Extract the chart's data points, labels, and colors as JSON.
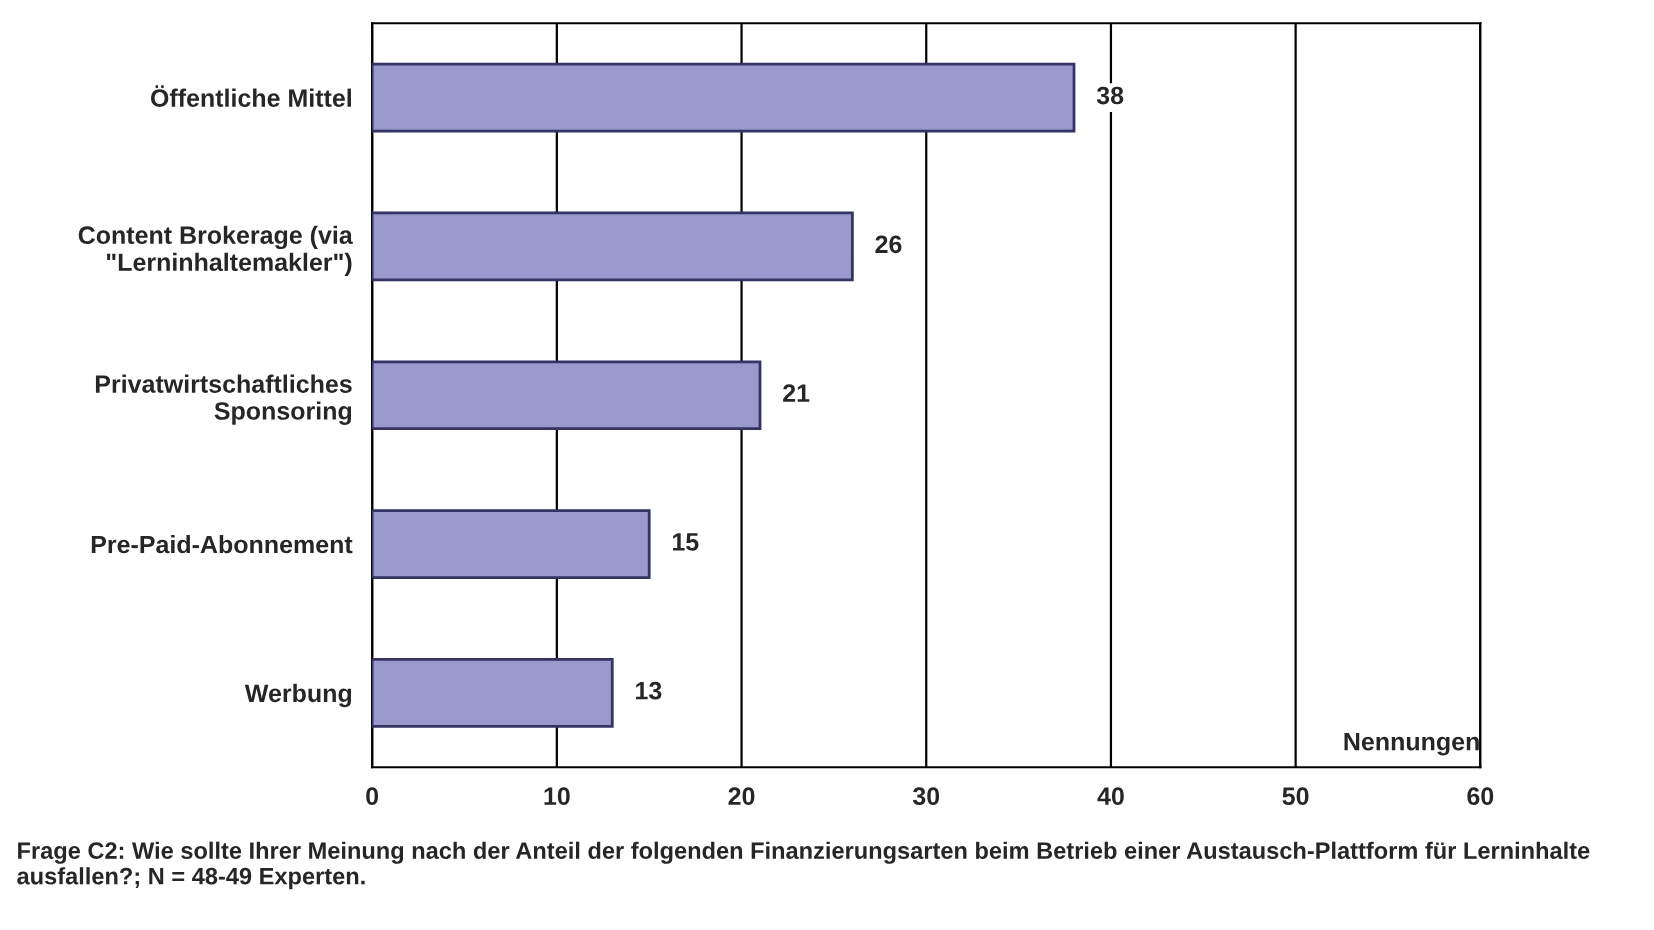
{
  "chart_data": {
    "type": "bar",
    "orientation": "horizontal",
    "categories": [
      "Öffentliche Mittel",
      "Content Brokerage (via\n\"Lerninhaltemakler\")",
      "Privatwirtschaftliches\nSponsoring",
      "Pre-Paid-Abonnement",
      "Werbung"
    ],
    "values": [
      38,
      26,
      21,
      15,
      13
    ],
    "color": "#9999cc",
    "xlim": [
      0,
      60
    ],
    "xticks": [
      0,
      10,
      20,
      30,
      40,
      50,
      60
    ],
    "xlabel": "Nennungen",
    "grid": "x",
    "data_labels": true,
    "annotations": [
      "Frage C2: Wie sollte Ihrer Meinung nach der Anteil der folgenden Finanzierungsarten beim Betrieb einer Austausch-Plattform für Lerninhalte ausfallen?; N = 48-49 Experten."
    ]
  }
}
